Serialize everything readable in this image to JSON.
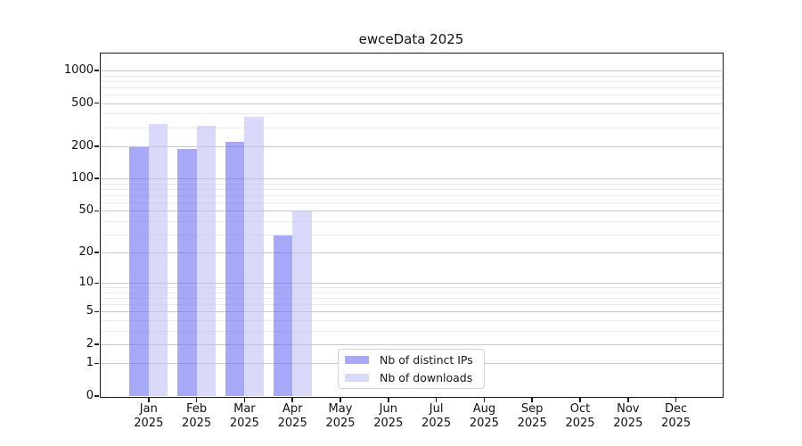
{
  "title": "ewceData 2025",
  "legend": {
    "items": [
      {
        "label": "Nb of distinct IPs",
        "color_rendered": "#a8a8f8"
      },
      {
        "label": "Nb of downloads",
        "color_rendered": "#d9d9f9"
      }
    ]
  },
  "axes": {
    "y_tick_labels": [
      "0",
      "1",
      "2",
      "5",
      "10",
      "20",
      "50",
      "100",
      "200",
      "500",
      "1000"
    ],
    "x_tick_labels": [
      {
        "month": "Jan",
        "year": "2025"
      },
      {
        "month": "Feb",
        "year": "2025"
      },
      {
        "month": "Mar",
        "year": "2025"
      },
      {
        "month": "Apr",
        "year": "2025"
      },
      {
        "month": "May",
        "year": "2025"
      },
      {
        "month": "Jun",
        "year": "2025"
      },
      {
        "month": "Jul",
        "year": "2025"
      },
      {
        "month": "Aug",
        "year": "2025"
      },
      {
        "month": "Sep",
        "year": "2025"
      },
      {
        "month": "Oct",
        "year": "2025"
      },
      {
        "month": "Nov",
        "year": "2025"
      },
      {
        "month": "Dec",
        "year": "2025"
      }
    ]
  },
  "colors": {
    "major_gridline": "#c8c8c8",
    "minor_gridline": "#ebebeb",
    "axis": "#1a1a1a"
  },
  "chart_data": {
    "type": "bar",
    "title": "ewceData 2025",
    "xlabel": "",
    "ylabel": "",
    "x": [
      "Jan 2025",
      "Feb 2025",
      "Mar 2025",
      "Apr 2025",
      "May 2025",
      "Jun 2025",
      "Jul 2025",
      "Aug 2025",
      "Sep 2025",
      "Oct 2025",
      "Nov 2025",
      "Dec 2025"
    ],
    "series": [
      {
        "name": "Nb of distinct IPs",
        "values": [
          195,
          188,
          220,
          29,
          null,
          null,
          null,
          null,
          null,
          null,
          null,
          null
        ],
        "css": "rgba(110,110,243,0.6)"
      },
      {
        "name": "Nb of downloads",
        "values": [
          320,
          310,
          370,
          50,
          null,
          null,
          null,
          null,
          null,
          null,
          null,
          null
        ],
        "css": "rgba(192,192,245,0.6)"
      }
    ],
    "y_scale": "log10(1+x)",
    "y_ticks": [
      0,
      1,
      2,
      5,
      10,
      20,
      50,
      100,
      200,
      500,
      1000
    ],
    "y_minor_gridlines": [
      3,
      4,
      6,
      7,
      8,
      9,
      30,
      40,
      60,
      70,
      80,
      90,
      300,
      400,
      600,
      700,
      800,
      900
    ],
    "ylim_top_log": 3.157,
    "grid": true,
    "legend_position": "lower center-right inside plot"
  }
}
